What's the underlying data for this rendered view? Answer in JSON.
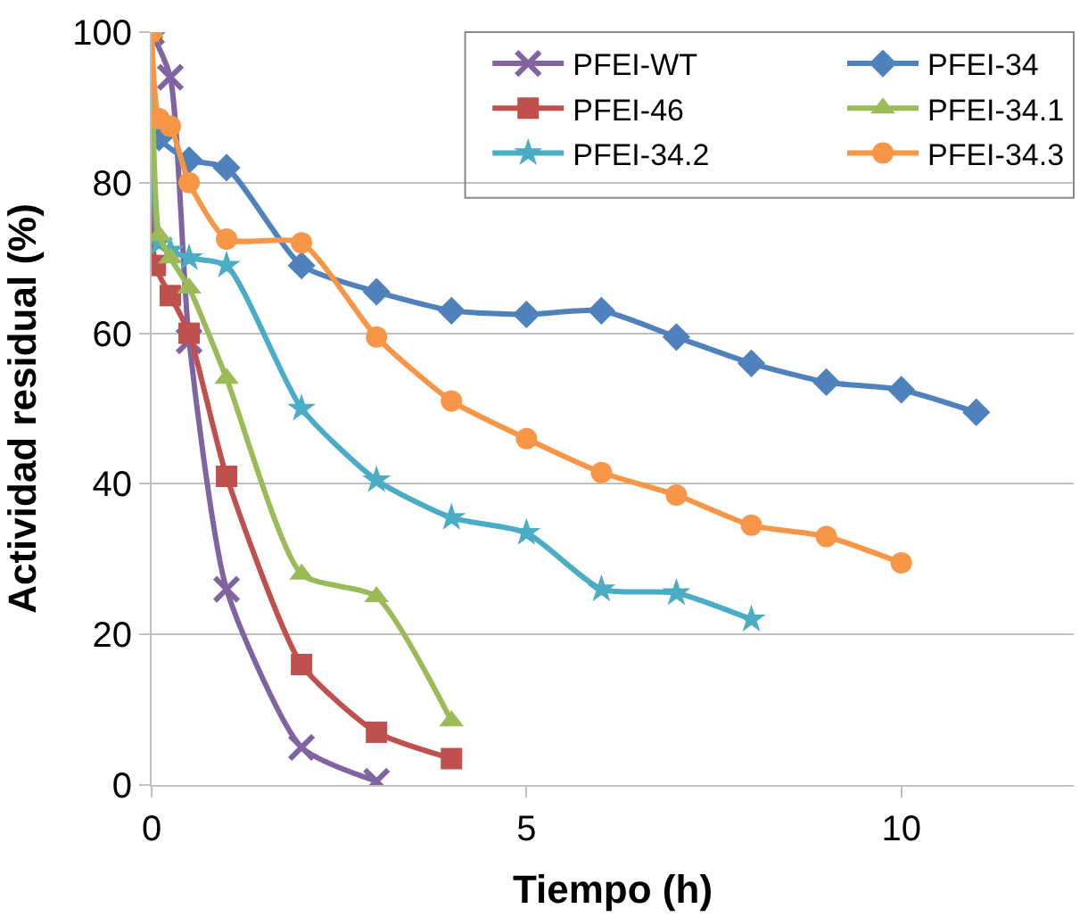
{
  "chart_data": {
    "type": "line",
    "xlabel": "Tiempo (h)",
    "ylabel": "Actividad residual (%)",
    "xlim": [
      0,
      12.3
    ],
    "xticks": [
      0,
      5,
      10
    ],
    "ylim": [
      0,
      100
    ],
    "yticks": [
      0,
      20,
      40,
      60,
      80,
      100
    ],
    "grid": "y",
    "legend": "top right",
    "series": [
      {
        "name": "PFEI-WT",
        "color": "#8064a2",
        "marker": "cross",
        "x": [
          0,
          0.25,
          0.5,
          1,
          2,
          3
        ],
        "values": [
          100,
          94,
          59,
          26,
          5,
          0.5
        ]
      },
      {
        "name": "PFEI-46",
        "color": "#c0504d",
        "marker": "square",
        "x": [
          0,
          0.05,
          0.25,
          0.5,
          1,
          2,
          3,
          4
        ],
        "values": [
          100,
          69,
          65,
          60,
          41,
          16,
          7,
          3.5
        ]
      },
      {
        "name": "PFEI-34.2",
        "color": "#4bacc6",
        "marker": "star",
        "x": [
          0,
          0.1,
          0.25,
          0.5,
          1,
          2,
          3,
          4,
          5,
          6,
          7,
          8
        ],
        "values": [
          100,
          72,
          71,
          70,
          69,
          50,
          40.5,
          35.5,
          33.5,
          26,
          25.5,
          22
        ]
      },
      {
        "name": "PFEI-34",
        "color": "#4f81bd",
        "marker": "diamond",
        "x": [
          0,
          0.1,
          0.5,
          1,
          2,
          3,
          4,
          5,
          6,
          7,
          8,
          9,
          10,
          11
        ],
        "values": [
          100,
          86,
          83,
          82,
          69,
          65.5,
          63,
          62.5,
          63,
          59.5,
          56,
          53.5,
          52.5,
          49.5
        ]
      },
      {
        "name": "PFEI-34.1",
        "color": "#9bbb59",
        "marker": "triangle",
        "x": [
          0,
          0.1,
          0.25,
          0.5,
          1,
          2,
          3,
          4
        ],
        "values": [
          100,
          73,
          70,
          66,
          54,
          28,
          25,
          8.5
        ]
      },
      {
        "name": "PFEI-34.3",
        "color": "#f79646",
        "marker": "circle",
        "x": [
          0,
          0.1,
          0.25,
          0.5,
          1,
          2,
          3,
          4,
          5,
          6,
          7,
          8,
          9,
          10
        ],
        "values": [
          100,
          88.5,
          87.5,
          80,
          72.5,
          72,
          59.5,
          51,
          46,
          41.5,
          38.5,
          34.5,
          33,
          29.5
        ]
      }
    ]
  }
}
